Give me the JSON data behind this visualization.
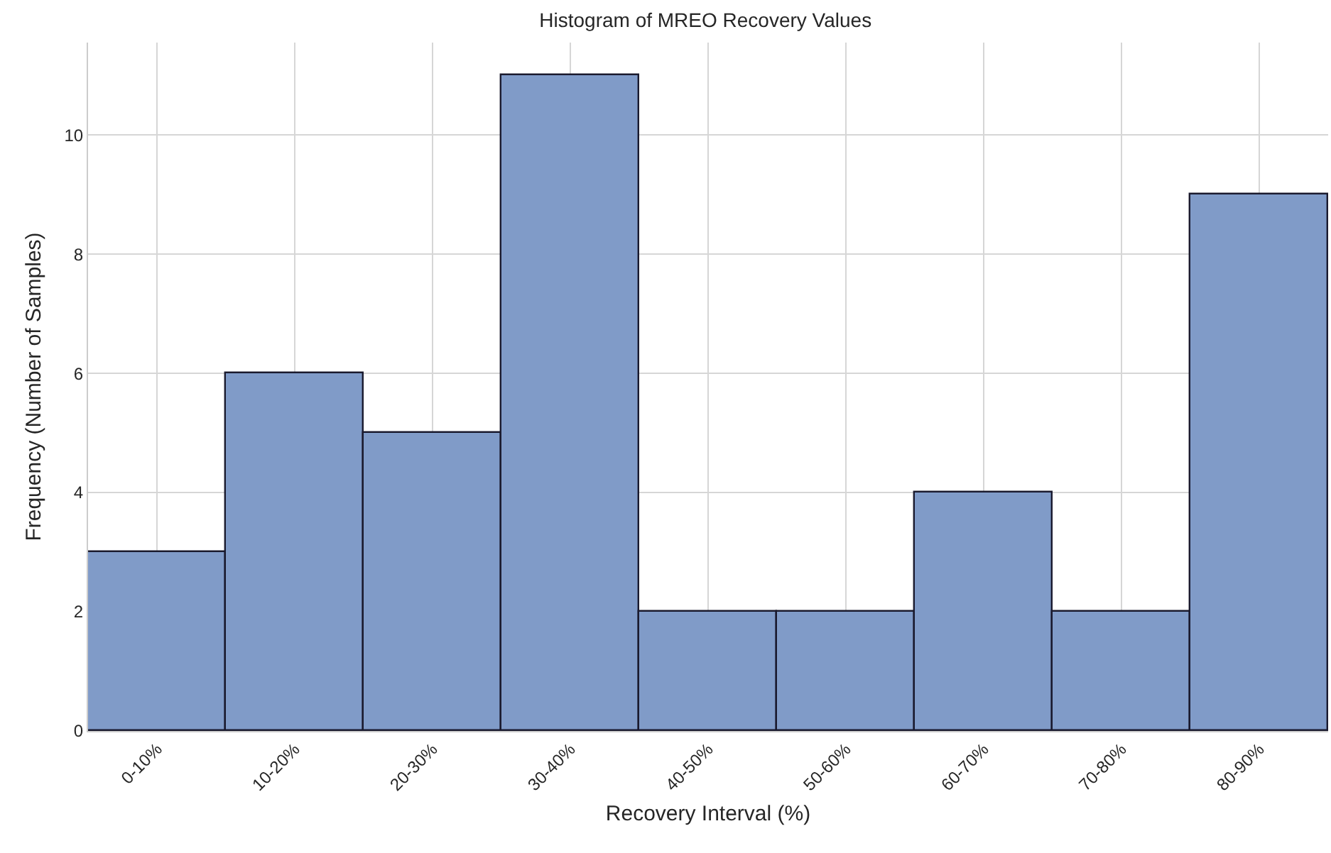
{
  "chart_data": {
    "type": "bar",
    "title": "Histogram of MREO Recovery Values",
    "xlabel": "Recovery Interval (%)",
    "ylabel": "Frequency (Number of Samples)",
    "categories": [
      "0-10%",
      "10-20%",
      "20-30%",
      "30-40%",
      "40-50%",
      "50-60%",
      "60-70%",
      "70-80%",
      "80-90%"
    ],
    "values": [
      3,
      6,
      5,
      11,
      2,
      2,
      4,
      2,
      9
    ],
    "color": "#809bc8",
    "ylim": [
      0,
      11.55
    ],
    "yticks": [
      0,
      2,
      4,
      6,
      8,
      10
    ],
    "grid": true
  }
}
